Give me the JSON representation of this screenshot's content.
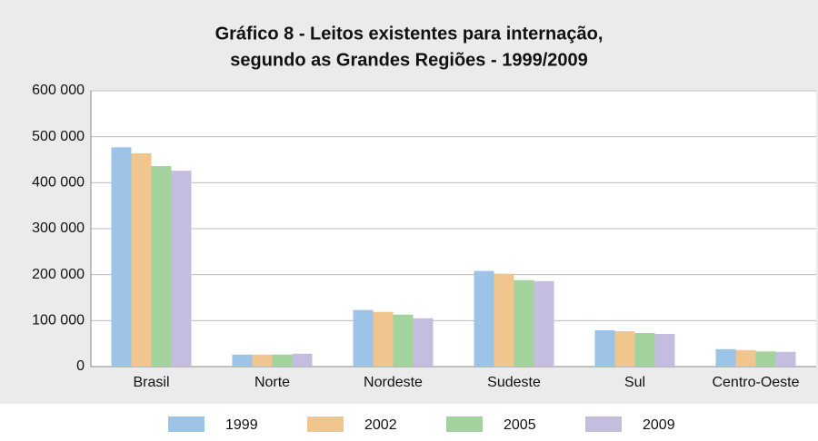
{
  "chart_data": {
    "type": "bar",
    "title": [
      "Gráfico 8 - Leitos existentes para internação,",
      "segundo as Grandes Regiões - 1999/2009"
    ],
    "categories": [
      "Brasil",
      "Norte",
      "Nordeste",
      "Sudeste",
      "Sul",
      "Centro-Oeste"
    ],
    "series": [
      {
        "name": "1999",
        "color": "#9dc3e6",
        "values": [
          477000,
          26000,
          123000,
          208000,
          79000,
          38000
        ]
      },
      {
        "name": "2002",
        "color": "#f0c58e",
        "values": [
          464000,
          26000,
          119000,
          202000,
          77000,
          36000
        ]
      },
      {
        "name": "2005",
        "color": "#a3d39c",
        "values": [
          436000,
          26000,
          113000,
          188000,
          73000,
          33000
        ]
      },
      {
        "name": "2009",
        "color": "#c5bde0",
        "values": [
          426000,
          28000,
          105000,
          186000,
          71000,
          32000
        ]
      }
    ],
    "ylim": [
      0,
      600000
    ],
    "yticks": [
      0,
      {
        "value": 100000,
        "label": "100 000"
      },
      {
        "value": 200000,
        "label": "200 000"
      },
      {
        "value": 300000,
        "label": "300 000"
      },
      {
        "value": 400000,
        "label": "400 000"
      },
      {
        "value": 500000,
        "label": "500 000"
      },
      {
        "value": 600000,
        "label": "600 000"
      }
    ],
    "grid": true,
    "legend": "bottom"
  }
}
